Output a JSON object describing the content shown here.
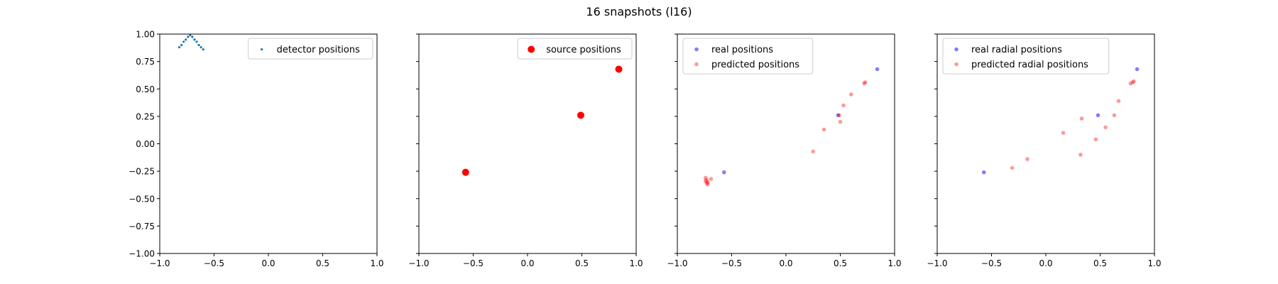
{
  "figure": {
    "suptitle": "16 snapshots (l16)"
  },
  "chart_data": [
    {
      "type": "scatter",
      "xlim": [
        -1.0,
        1.0
      ],
      "ylim": [
        -1.0,
        1.0
      ],
      "xticks": [
        "−1.0",
        "−0.5",
        "0.0",
        "0.5",
        "1.0"
      ],
      "yticks": [
        "−1.00",
        "−0.75",
        "−0.50",
        "−0.25",
        "0.00",
        "0.25",
        "0.50",
        "0.75",
        "1.00"
      ],
      "show_y_tick_labels": true,
      "grid": false,
      "legend_position": "upper right",
      "series": [
        {
          "name": "detector positions",
          "color": "#1f77b4",
          "alpha": 1.0,
          "marker_size": 1.6,
          "points": [
            [
              -0.82,
              0.88
            ],
            [
              -0.8,
              0.9
            ],
            [
              -0.78,
              0.93
            ],
            [
              -0.76,
              0.95
            ],
            [
              -0.74,
              0.975
            ],
            [
              -0.72,
              0.99
            ],
            [
              -0.7,
              0.975
            ],
            [
              -0.68,
              0.95
            ],
            [
              -0.66,
              0.93
            ],
            [
              -0.64,
              0.9
            ],
            [
              -0.62,
              0.88
            ],
            [
              -0.6,
              0.86
            ]
          ]
        }
      ]
    },
    {
      "type": "scatter",
      "xlim": [
        -1.0,
        1.0
      ],
      "ylim": [
        -1.0,
        1.0
      ],
      "xticks": [
        "−1.0",
        "−0.5",
        "0.0",
        "0.5",
        "1.0"
      ],
      "yticks": [
        "−1.00",
        "−0.75",
        "−0.50",
        "−0.25",
        "0.00",
        "0.25",
        "0.50",
        "0.75",
        "1.00"
      ],
      "show_y_tick_labels": false,
      "grid": false,
      "legend_position": "upper right",
      "series": [
        {
          "name": "source positions",
          "color": "#ff0000",
          "alpha": 1.0,
          "marker_size": 5,
          "points": [
            [
              -0.57,
              -0.26
            ],
            [
              0.49,
              0.26
            ],
            [
              0.84,
              0.68
            ]
          ]
        }
      ]
    },
    {
      "type": "scatter",
      "xlim": [
        -1.0,
        1.0
      ],
      "ylim": [
        -1.0,
        1.0
      ],
      "xticks": [
        "−1.0",
        "−0.5",
        "0.0",
        "0.5",
        "1.0"
      ],
      "yticks": [
        "−1.00",
        "−0.75",
        "−0.50",
        "−0.25",
        "0.00",
        "0.25",
        "0.50",
        "0.75",
        "1.00"
      ],
      "show_y_tick_labels": false,
      "grid": false,
      "legend_position": "upper left",
      "series": [
        {
          "name": "real positions",
          "color": "#0000ff",
          "alpha": 0.5,
          "marker_size": 2.8,
          "points": [
            [
              -0.57,
              -0.26
            ],
            [
              0.48,
              0.26
            ],
            [
              0.84,
              0.68
            ]
          ]
        },
        {
          "name": "predicted positions",
          "color": "#ff0000",
          "alpha": 0.4,
          "marker_size": 2.8,
          "points": [
            [
              -0.74,
              -0.31
            ],
            [
              -0.73,
              -0.33
            ],
            [
              -0.74,
              -0.34
            ],
            [
              -0.72,
              -0.35
            ],
            [
              -0.73,
              -0.36
            ],
            [
              -0.72,
              -0.37
            ],
            [
              -0.69,
              -0.32
            ],
            [
              0.25,
              -0.07
            ],
            [
              0.35,
              0.13
            ],
            [
              0.5,
              0.2
            ],
            [
              0.53,
              0.35
            ],
            [
              0.6,
              0.45
            ],
            [
              0.72,
              0.55
            ],
            [
              0.73,
              0.56
            ],
            [
              0.49,
              0.26
            ]
          ]
        }
      ]
    },
    {
      "type": "scatter",
      "xlim": [
        -1.0,
        1.0
      ],
      "ylim": [
        -1.0,
        1.0
      ],
      "xticks": [
        "−1.0",
        "−0.5",
        "0.0",
        "0.5",
        "1.0"
      ],
      "yticks": [
        "−1.00",
        "−0.75",
        "−0.50",
        "−0.25",
        "0.00",
        "0.25",
        "0.50",
        "0.75",
        "1.00"
      ],
      "show_y_tick_labels": false,
      "grid": false,
      "legend_position": "upper left",
      "series": [
        {
          "name": "real radial positions",
          "color": "#0000ff",
          "alpha": 0.5,
          "marker_size": 2.8,
          "points": [
            [
              -0.57,
              -0.26
            ],
            [
              0.48,
              0.26
            ],
            [
              0.84,
              0.68
            ]
          ]
        },
        {
          "name": "predicted radial positions",
          "color": "#ff0000",
          "alpha": 0.4,
          "marker_size": 2.8,
          "points": [
            [
              -0.31,
              -0.22
            ],
            [
              -0.17,
              -0.14
            ],
            [
              0.16,
              0.1
            ],
            [
              0.32,
              -0.1
            ],
            [
              0.33,
              0.23
            ],
            [
              0.46,
              0.04
            ],
            [
              0.55,
              0.15
            ],
            [
              0.63,
              0.26
            ],
            [
              0.67,
              0.39
            ],
            [
              0.78,
              0.55
            ],
            [
              0.8,
              0.56
            ],
            [
              0.81,
              0.57
            ]
          ]
        }
      ]
    }
  ]
}
